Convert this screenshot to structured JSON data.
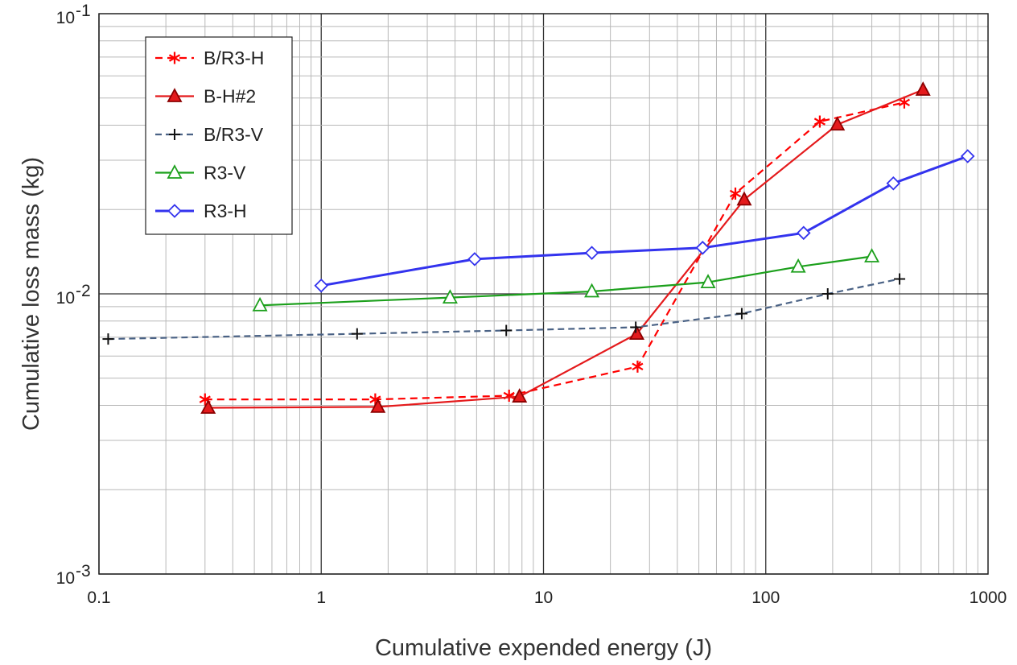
{
  "chart_data": {
    "type": "line",
    "title": "",
    "xlabel": "Cumulative expended energy (J)",
    "ylabel": "Cumulative loss mass (kg)",
    "xscale": "log",
    "yscale": "log",
    "xlim": [
      0.1,
      1000
    ],
    "ylim": [
      0.001,
      0.1
    ],
    "grid": true,
    "legend_position": "top-left",
    "x_ticks": [
      {
        "value": 0.1,
        "label": "0.1"
      },
      {
        "value": 1,
        "label": "1"
      },
      {
        "value": 10,
        "label": "10"
      },
      {
        "value": 100,
        "label": "100"
      },
      {
        "value": 1000,
        "label": "1000"
      }
    ],
    "y_ticks": [
      {
        "value": 0.001,
        "base": "10",
        "exp": "-3"
      },
      {
        "value": 0.01,
        "base": "10",
        "exp": "-2"
      },
      {
        "value": 0.1,
        "base": "10",
        "exp": "-1"
      }
    ],
    "series": [
      {
        "name": "B/R3-H",
        "color": "#ff0000",
        "dash": "dashed",
        "marker": "asterisk",
        "x": [
          0.3,
          1.75,
          7.0,
          26.5,
          73,
          175,
          420
        ],
        "y": [
          0.0042,
          0.0042,
          0.00433,
          0.0055,
          0.0228,
          0.0412,
          0.0482
        ]
      },
      {
        "name": "B-H#2",
        "color": "#e41a1c",
        "dash": "solid",
        "marker": "triangle-filled",
        "x": [
          0.31,
          1.8,
          7.8,
          26.3,
          80,
          210,
          510
        ],
        "y": [
          0.00392,
          0.00395,
          0.0043,
          0.0072,
          0.0217,
          0.0402,
          0.0535
        ]
      },
      {
        "name": "B/R3-V",
        "color": "#4a6285",
        "dash": "dashed",
        "marker": "plus",
        "x": [
          0.11,
          1.45,
          6.8,
          26,
          78,
          190,
          400
        ],
        "y": [
          0.0069,
          0.0072,
          0.0074,
          0.0076,
          0.0085,
          0.01,
          0.0113
        ]
      },
      {
        "name": "R3-V",
        "color": "#1ca01c",
        "dash": "solid",
        "marker": "triangle-open",
        "x": [
          0.53,
          3.8,
          16.5,
          55,
          140,
          300
        ],
        "y": [
          0.0091,
          0.0097,
          0.0102,
          0.011,
          0.0125,
          0.0136
        ]
      },
      {
        "name": "R3-H",
        "color": "#3333ee",
        "dash": "solid",
        "marker": "diamond-open",
        "x": [
          1.0,
          4.9,
          16.5,
          52,
          148,
          375,
          810
        ],
        "y": [
          0.0107,
          0.0133,
          0.014,
          0.0146,
          0.0165,
          0.0248,
          0.031
        ]
      }
    ]
  }
}
